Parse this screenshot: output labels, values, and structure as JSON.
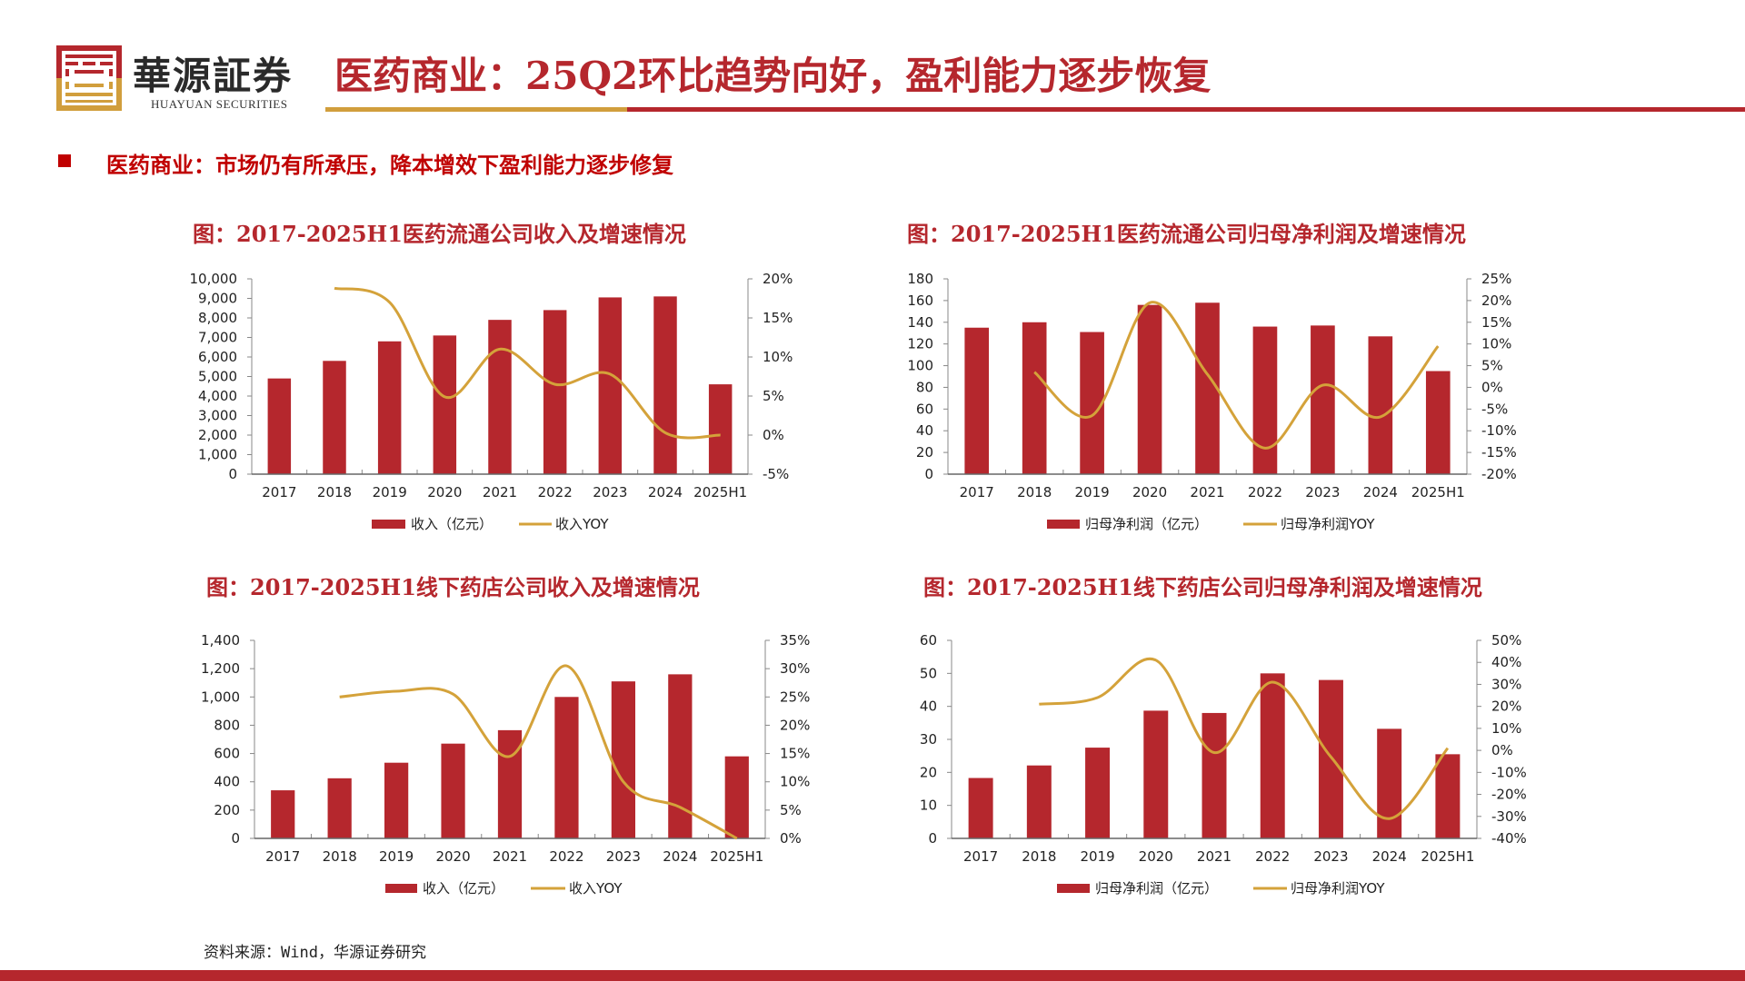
{
  "header": {
    "brand_name": "華源証券",
    "brand_en": "HUAYUAN SECURITIES",
    "title": "医药商业：25Q2环比趋势向好，盈利能力逐步恢复"
  },
  "subtitle": "医药商业：市场仍有所承压，降本增效下盈利能力逐步修复",
  "source": "资料来源：Wind，华源证券研究",
  "colors": {
    "bar": "#b5272d",
    "line": "#d4a23a",
    "accent": "#b5272d"
  },
  "chart_data": [
    {
      "type": "bar+line",
      "title": "图：2017-2025H1医药流通公司收入及增速情况",
      "categories": [
        "2017",
        "2018",
        "2019",
        "2020",
        "2021",
        "2022",
        "2023",
        "2024",
        "2025H1"
      ],
      "bar_series": {
        "name": "收入（亿元）",
        "values": [
          4900,
          5800,
          6800,
          7100,
          7900,
          8400,
          9050,
          9100,
          4600
        ]
      },
      "line_series": {
        "name": "收入YOY",
        "values": [
          null,
          18.8,
          17.0,
          4.9,
          11.0,
          6.5,
          7.8,
          0.3,
          0.0
        ]
      },
      "ylim": [
        0,
        10000
      ],
      "yticks": [
        "0",
        "1,000",
        "2,000",
        "3,000",
        "4,000",
        "5,000",
        "6,000",
        "7,000",
        "8,000",
        "9,000",
        "10,000"
      ],
      "y2lim": [
        -5,
        20
      ],
      "y2ticks": [
        "-5%",
        "0%",
        "5%",
        "10%",
        "15%",
        "20%"
      ],
      "legend": "bottom",
      "grid": false
    },
    {
      "type": "bar+line",
      "title": "图：2017-2025H1医药流通公司归母净利润及增速情况",
      "categories": [
        "2017",
        "2018",
        "2019",
        "2020",
        "2021",
        "2022",
        "2023",
        "2024",
        "2025H1"
      ],
      "bar_series": {
        "name": "归母净利润（亿元）",
        "values": [
          135,
          140,
          131,
          156,
          158,
          136,
          137,
          127,
          95
        ]
      },
      "line_series": {
        "name": "归母净利润YOY",
        "values": [
          null,
          3.5,
          -6.5,
          19.5,
          3.0,
          -14.0,
          0.5,
          -6.8,
          9.5
        ]
      },
      "ylim": [
        0,
        180
      ],
      "yticks": [
        "0",
        "20",
        "40",
        "60",
        "80",
        "100",
        "120",
        "140",
        "160",
        "180"
      ],
      "y2lim": [
        -20,
        25
      ],
      "y2ticks": [
        "-20%",
        "-15%",
        "-10%",
        "-5%",
        "0%",
        "5%",
        "10%",
        "15%",
        "20%",
        "25%"
      ],
      "legend": "bottom",
      "grid": false
    },
    {
      "type": "bar+line",
      "title": "图：2017-2025H1线下药店公司收入及增速情况",
      "categories": [
        "2017",
        "2018",
        "2019",
        "2020",
        "2021",
        "2022",
        "2023",
        "2024",
        "2025H1"
      ],
      "bar_series": {
        "name": "收入（亿元）",
        "values": [
          340,
          425,
          535,
          670,
          765,
          1000,
          1110,
          1160,
          580
        ]
      },
      "line_series": {
        "name": "收入YOY",
        "values": [
          null,
          25.0,
          26.0,
          25.5,
          14.5,
          30.5,
          10.0,
          5.5,
          0.0
        ]
      },
      "ylim": [
        0,
        1400
      ],
      "yticks": [
        "0",
        "200",
        "400",
        "600",
        "800",
        "1,000",
        "1,200",
        "1,400"
      ],
      "y2lim": [
        0,
        35
      ],
      "y2ticks": [
        "0%",
        "5%",
        "10%",
        "15%",
        "20%",
        "25%",
        "30%",
        "35%"
      ],
      "legend": "bottom",
      "grid": false
    },
    {
      "type": "bar+line",
      "title": "图：2017-2025H1线下药店公司归母净利润及增速情况",
      "categories": [
        "2017",
        "2018",
        "2019",
        "2020",
        "2021",
        "2022",
        "2023",
        "2024",
        "2025H1"
      ],
      "bar_series": {
        "name": "归母净利润（亿元）",
        "values": [
          18.3,
          22.1,
          27.5,
          38.7,
          38.0,
          50.0,
          48.0,
          33.2,
          25.5
        ]
      },
      "line_series": {
        "name": "归母净利润YOY",
        "values": [
          null,
          21.0,
          24.0,
          41.0,
          -1.0,
          31.0,
          -3.0,
          -31.0,
          1.0
        ]
      },
      "ylim": [
        0,
        60
      ],
      "yticks": [
        "0",
        "10",
        "20",
        "30",
        "40",
        "50",
        "60"
      ],
      "y2lim": [
        -40,
        50
      ],
      "y2ticks": [
        "-40%",
        "-30%",
        "-20%",
        "-10%",
        "0%",
        "10%",
        "20%",
        "30%",
        "40%",
        "50%"
      ],
      "legend": "bottom",
      "grid": false
    }
  ]
}
